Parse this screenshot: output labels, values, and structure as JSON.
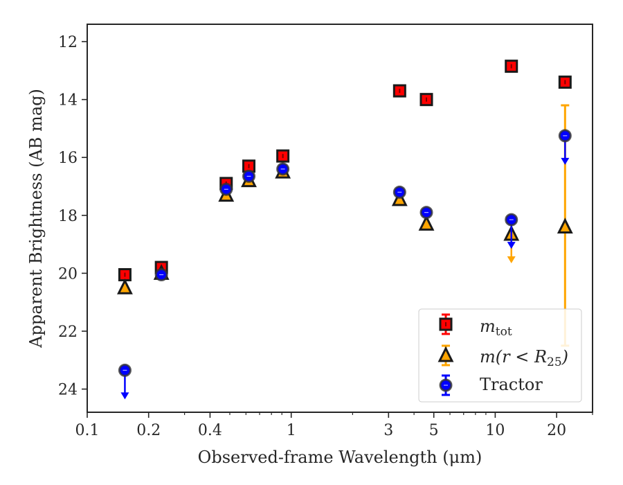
{
  "chart_data": {
    "type": "scatter",
    "xlabel": "Observed-frame Wavelength (μm)",
    "ylabel": "Apparent Brightness (AB mag)",
    "xscale": "log",
    "yscale": "linear",
    "y_inverted": true,
    "xlim": [
      0.1,
      30
    ],
    "ylim": [
      24.8,
      11.4
    ],
    "xticks": [
      0.1,
      0.2,
      0.4,
      1,
      3,
      5,
      10,
      20
    ],
    "xtick_labels": [
      "0.1",
      "0.2",
      "0.4",
      "1",
      "3",
      "5",
      "10",
      "20"
    ],
    "yticks": [
      12,
      14,
      16,
      18,
      20,
      22,
      24
    ],
    "ytick_labels": [
      "12",
      "14",
      "16",
      "18",
      "20",
      "22",
      "24"
    ],
    "grid": false,
    "legend_position": "lower-right",
    "series": [
      {
        "name": "m_tot",
        "legend_label": "m",
        "legend_sub": "tot",
        "marker": "square",
        "color": "#ff0000",
        "edge_color": "#1a1a1a",
        "points": [
          {
            "x": 0.153,
            "y": 20.05
          },
          {
            "x": 0.231,
            "y": 19.8
          },
          {
            "x": 0.48,
            "y": 16.9
          },
          {
            "x": 0.62,
            "y": 16.3
          },
          {
            "x": 0.91,
            "y": 15.95
          },
          {
            "x": 3.4,
            "y": 13.7
          },
          {
            "x": 4.6,
            "y": 14.0
          },
          {
            "x": 12.0,
            "y": 12.85
          },
          {
            "x": 22.0,
            "y": 13.4
          }
        ]
      },
      {
        "name": "m(r < R_25)",
        "legend_label": "m(r < R",
        "legend_sub": "25",
        "legend_suffix": ")",
        "marker": "triangle",
        "color": "#ffa500",
        "edge_color": "#1a1a1a",
        "points": [
          {
            "x": 0.153,
            "y": 20.5
          },
          {
            "x": 0.231,
            "y": 20.0
          },
          {
            "x": 0.48,
            "y": 17.3
          },
          {
            "x": 0.62,
            "y": 16.8
          },
          {
            "x": 0.91,
            "y": 16.5
          },
          {
            "x": 3.4,
            "y": 17.45
          },
          {
            "x": 4.6,
            "y": 18.3
          },
          {
            "x": 12.0,
            "y": 18.65,
            "upper_limit": true
          },
          {
            "x": 22.0,
            "y": 18.4,
            "yerr_low": 14.2,
            "yerr_high": 22.5
          }
        ]
      },
      {
        "name": "Tractor",
        "legend_label": "Tractor",
        "marker": "circle",
        "color": "#0000ff",
        "edge_color": "#333333",
        "points": [
          {
            "x": 0.153,
            "y": 23.35,
            "upper_limit": true
          },
          {
            "x": 0.231,
            "y": 20.05
          },
          {
            "x": 0.48,
            "y": 17.1
          },
          {
            "x": 0.62,
            "y": 16.65
          },
          {
            "x": 0.91,
            "y": 16.4
          },
          {
            "x": 3.4,
            "y": 17.2
          },
          {
            "x": 4.6,
            "y": 17.9
          },
          {
            "x": 12.0,
            "y": 18.15,
            "upper_limit": true
          },
          {
            "x": 22.0,
            "y": 15.25,
            "upper_limit": true
          }
        ]
      }
    ]
  }
}
